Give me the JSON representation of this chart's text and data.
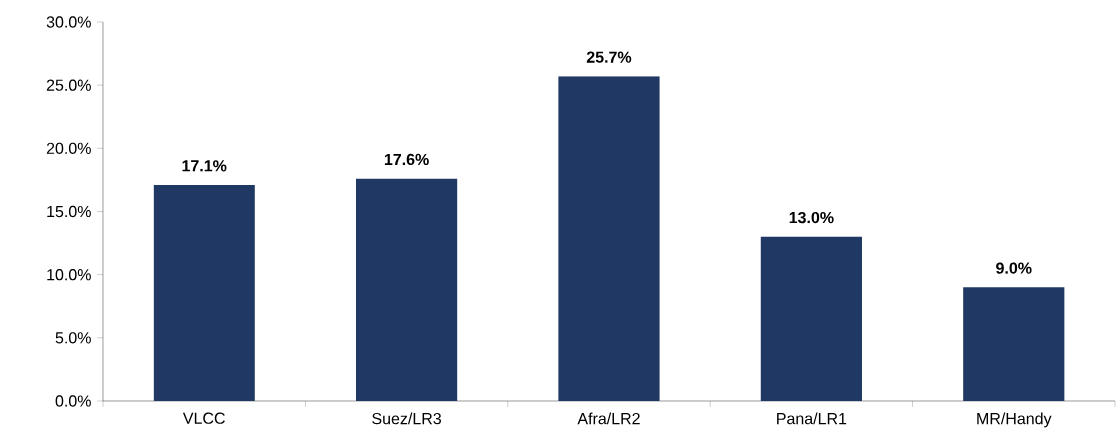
{
  "chart_data": {
    "type": "bar",
    "categories": [
      "VLCC",
      "Suez/LR3",
      "Afra/LR2",
      "Pana/LR1",
      "MR/Handy"
    ],
    "values": [
      17.1,
      17.6,
      25.7,
      13.0,
      9.0
    ],
    "value_labels": [
      "17.1%",
      "17.6%",
      "25.7%",
      "13.0%",
      "9.0%"
    ],
    "color": "#203864",
    "ylim": [
      0,
      30
    ],
    "yticks": [
      {
        "value": 0,
        "label": "0.0%"
      },
      {
        "value": 5,
        "label": "5.0%"
      },
      {
        "value": 10,
        "label": "10.0%"
      },
      {
        "value": 15,
        "label": "15.0%"
      },
      {
        "value": 20,
        "label": "20.0%"
      },
      {
        "value": 25,
        "label": "25.0%"
      },
      {
        "value": 30,
        "label": "30.0%"
      }
    ],
    "grid": false
  }
}
